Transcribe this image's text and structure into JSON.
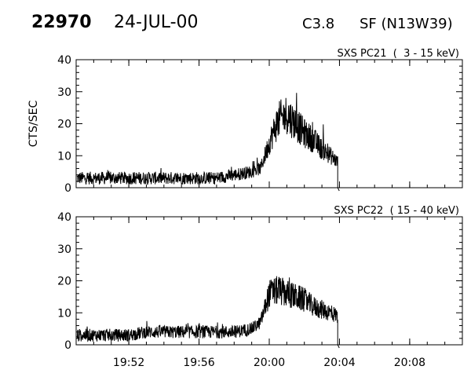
{
  "header": {
    "event_id": "22970",
    "date": "24-JUL-00",
    "goes_class": "C3.8",
    "flare": "SF (N13W39)"
  },
  "chart_data": [
    {
      "type": "line",
      "title": "SXS PC21  (  3 - 15 keV)",
      "ylabel": "CTS/SEC",
      "xlabel": "",
      "xlim": [
        "19:49",
        "20:11"
      ],
      "ylim": [
        0,
        40
      ],
      "yticks": [
        "0",
        "10",
        "20",
        "30",
        "40"
      ],
      "xticks": [
        "19:52",
        "19:56",
        "20:00",
        "20:04",
        "20:08"
      ],
      "grid": false,
      "series": [
        {
          "x": [
            "19:49",
            "19:50",
            "19:51",
            "19:52",
            "19:53",
            "19:54",
            "19:55",
            "19:56",
            "19:57",
            "19:58",
            "19:59",
            "19:59.5",
            "20:00",
            "20:00.5",
            "20:01",
            "20:01.5",
            "20:02",
            "20:02.5",
            "20:03",
            "20:03.5",
            "20:03.9",
            "20:04"
          ],
          "values": [
            3,
            3,
            3,
            3,
            3,
            3,
            3,
            3,
            3,
            4,
            5,
            6,
            14,
            21,
            23,
            20,
            17,
            15,
            12,
            10,
            8,
            0
          ]
        }
      ]
    },
    {
      "type": "line",
      "title": "SXS PC22  ( 15 - 40 keV)",
      "ylabel": "",
      "xlabel": "",
      "xlim": [
        "19:49",
        "20:11"
      ],
      "ylim": [
        0,
        40
      ],
      "yticks": [
        "0",
        "10",
        "20",
        "30",
        "40"
      ],
      "xticks": [
        "19:52",
        "19:56",
        "20:00",
        "20:04",
        "20:08"
      ],
      "grid": false,
      "series": [
        {
          "x": [
            "19:49",
            "19:50",
            "19:51",
            "19:52",
            "19:53",
            "19:54",
            "19:55",
            "19:56",
            "19:57",
            "19:58",
            "19:59",
            "19:59.5",
            "20:00",
            "20:00.5",
            "20:01",
            "20:01.5",
            "20:02",
            "20:02.5",
            "20:03",
            "20:03.5",
            "20:03.9",
            "20:04"
          ],
          "values": [
            3,
            3,
            3,
            3,
            4,
            4,
            4,
            4,
            4,
            4,
            5,
            7,
            16,
            17,
            16,
            15,
            14,
            12,
            11,
            10,
            9,
            0
          ]
        }
      ]
    }
  ]
}
